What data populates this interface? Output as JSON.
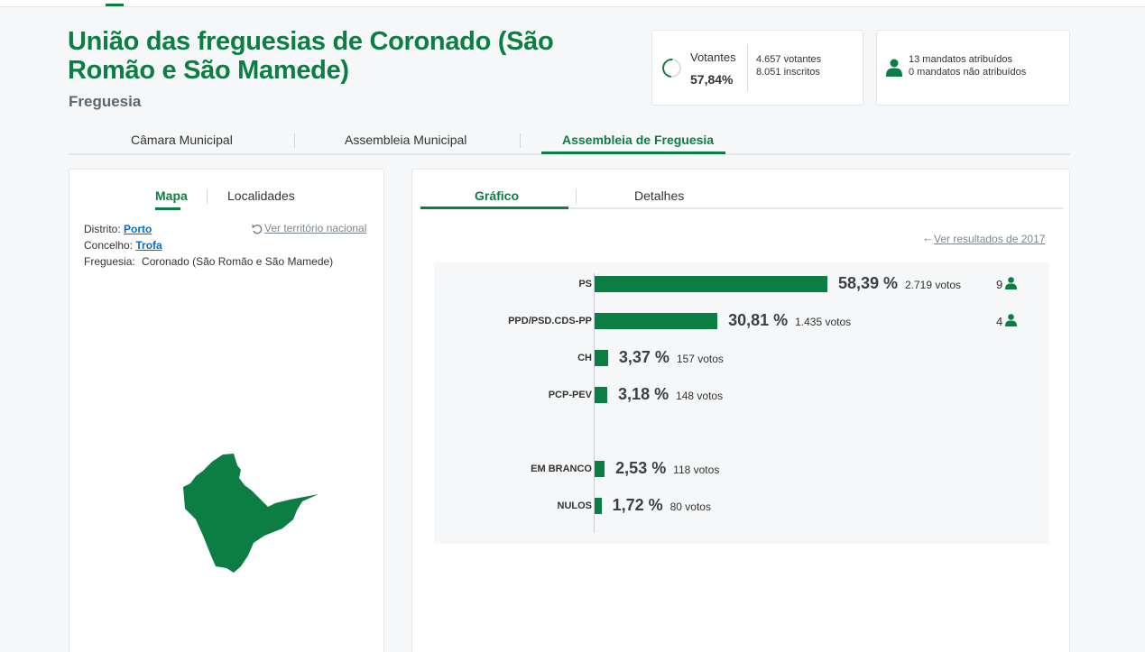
{
  "header": {
    "title": "União das freguesias de Coronado (São Romão e São Mamede)",
    "subtitle": "Freguesia"
  },
  "stats": {
    "votantes_label": "Votantes",
    "votantes_pct": "57,84%",
    "votantes_count": "4.657 votantes",
    "inscritos_count": "8.051 inscritos",
    "mandatos_atribuidos": "13 mandatos atribuídos",
    "mandatos_nao_atribuidos": "0 mandatos não atribuídos"
  },
  "main_tabs": [
    {
      "label": "Câmara Municipal"
    },
    {
      "label": "Assembleia Municipal"
    },
    {
      "label": "Assembleia de Freguesia"
    }
  ],
  "left_panel": {
    "tabs": [
      {
        "label": "Mapa"
      },
      {
        "label": "Localidades"
      }
    ],
    "ver_territorio": "Ver território nacional",
    "distrito_label": "Distrito:",
    "distrito_value": "Porto",
    "concelho_label": "Concelho:",
    "concelho_value": "Trofa",
    "freguesia_label": "Freguesia:",
    "freguesia_value": "Coronado (São Romão e São Mamede)"
  },
  "right_panel": {
    "tabs": [
      {
        "label": "Gráfico"
      },
      {
        "label": "Detalhes"
      }
    ],
    "ver_resultados": "Ver resultados de 2017"
  },
  "chart_data": {
    "type": "bar",
    "orientation": "horizontal",
    "categories": [
      "PS",
      "PPD/PSD.CDS-PP",
      "CH",
      "PCP-PEV",
      "EM BRANCO",
      "NULOS"
    ],
    "values": [
      58.39,
      30.81,
      3.37,
      3.18,
      2.53,
      1.72
    ],
    "pct_labels": [
      "58,39 %",
      "30,81 %",
      "3,37 %",
      "3,18 %",
      "2,53 %",
      "1,72 %"
    ],
    "votes_labels": [
      "2.719 votos",
      "1.435 votos",
      "157 votos",
      "148 votos",
      "118 votos",
      "80 votos"
    ],
    "seats": [
      "9",
      "4",
      "",
      "",
      "",
      ""
    ],
    "colors": {
      "bar": "#0d7e43"
    }
  },
  "colors": {
    "accent": "#0d7e43",
    "link": "#0d6bbf"
  }
}
